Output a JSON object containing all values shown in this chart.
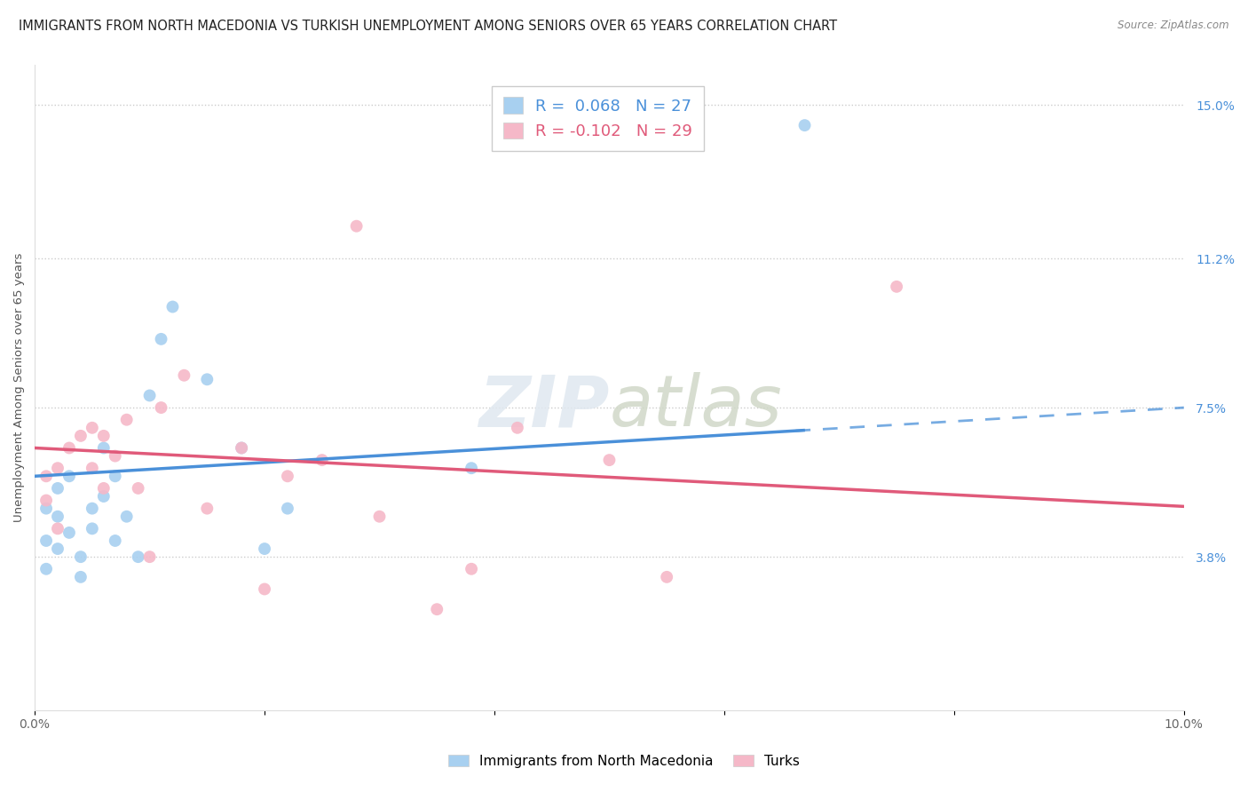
{
  "title": "IMMIGRANTS FROM NORTH MACEDONIA VS TURKISH UNEMPLOYMENT AMONG SENIORS OVER 65 YEARS CORRELATION CHART",
  "source": "Source: ZipAtlas.com",
  "ylabel": "Unemployment Among Seniors over 65 years",
  "xlim": [
    0,
    0.1
  ],
  "ylim": [
    0,
    0.16
  ],
  "xticks": [
    0.0,
    0.02,
    0.04,
    0.06,
    0.08,
    0.1
  ],
  "xticklabels": [
    "0.0%",
    "",
    "",
    "",
    "",
    "10.0%"
  ],
  "right_yticks": [
    0.038,
    0.075,
    0.112,
    0.15
  ],
  "right_yticklabels": [
    "3.8%",
    "7.5%",
    "11.2%",
    "15.0%"
  ],
  "legend_r1": "R =  0.068   N = 27",
  "legend_r2": "R = -0.102   N = 29",
  "blue_color": "#a8d0f0",
  "pink_color": "#f5b8c8",
  "blue_line_color": "#4a90d9",
  "pink_line_color": "#e05a7a",
  "watermark_zip": "ZIP",
  "watermark_atlas": "atlas",
  "blue_x": [
    0.001,
    0.001,
    0.001,
    0.002,
    0.002,
    0.002,
    0.003,
    0.003,
    0.004,
    0.004,
    0.005,
    0.005,
    0.006,
    0.006,
    0.007,
    0.007,
    0.008,
    0.009,
    0.01,
    0.011,
    0.012,
    0.015,
    0.018,
    0.02,
    0.022,
    0.038,
    0.067
  ],
  "blue_y": [
    0.05,
    0.042,
    0.035,
    0.055,
    0.048,
    0.04,
    0.058,
    0.044,
    0.038,
    0.033,
    0.05,
    0.045,
    0.065,
    0.053,
    0.058,
    0.042,
    0.048,
    0.038,
    0.078,
    0.092,
    0.1,
    0.082,
    0.065,
    0.04,
    0.05,
    0.06,
    0.145
  ],
  "pink_x": [
    0.001,
    0.001,
    0.002,
    0.002,
    0.003,
    0.004,
    0.005,
    0.005,
    0.006,
    0.006,
    0.007,
    0.008,
    0.009,
    0.01,
    0.011,
    0.013,
    0.015,
    0.018,
    0.02,
    0.022,
    0.025,
    0.028,
    0.03,
    0.035,
    0.038,
    0.042,
    0.05,
    0.055,
    0.075
  ],
  "pink_y": [
    0.052,
    0.058,
    0.06,
    0.045,
    0.065,
    0.068,
    0.06,
    0.07,
    0.055,
    0.068,
    0.063,
    0.072,
    0.055,
    0.038,
    0.075,
    0.083,
    0.05,
    0.065,
    0.03,
    0.058,
    0.062,
    0.12,
    0.048,
    0.025,
    0.035,
    0.07,
    0.062,
    0.033,
    0.105
  ],
  "marker_size": 100,
  "title_fontsize": 10.5,
  "axis_label_fontsize": 9.5,
  "tick_fontsize": 10
}
